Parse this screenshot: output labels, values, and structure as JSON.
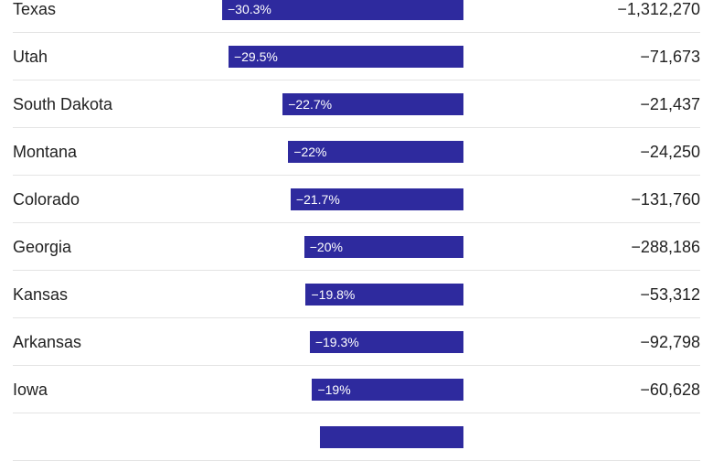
{
  "chart_data": {
    "type": "bar",
    "orientation": "horizontal",
    "bar_color": "#2e2a9e",
    "categories": [
      "Texas",
      "Utah",
      "South Dakota",
      "Montana",
      "Colorado",
      "Georgia",
      "Kansas",
      "Arkansas",
      "Iowa",
      ""
    ],
    "series": [
      {
        "values": [
          -30.3,
          -29.5,
          -22.7,
          -22,
          -21.7,
          -20,
          -19.8,
          -19.3,
          -19,
          -18
        ],
        "labels": [
          "−30.3%",
          "−29.5%",
          "−22.7%",
          "−22%",
          "−21.7%",
          "−20%",
          "−19.8%",
          "−19.3%",
          "−19%",
          ""
        ]
      }
    ],
    "absolute_change": [
      "−1,312,270",
      "−71,673",
      "−21,437",
      "−24,250",
      "−131,760",
      "−288,186",
      "−53,312",
      "−92,798",
      "−60,628",
      ""
    ],
    "xlim": [
      -30.3,
      0
    ],
    "grid": false
  }
}
